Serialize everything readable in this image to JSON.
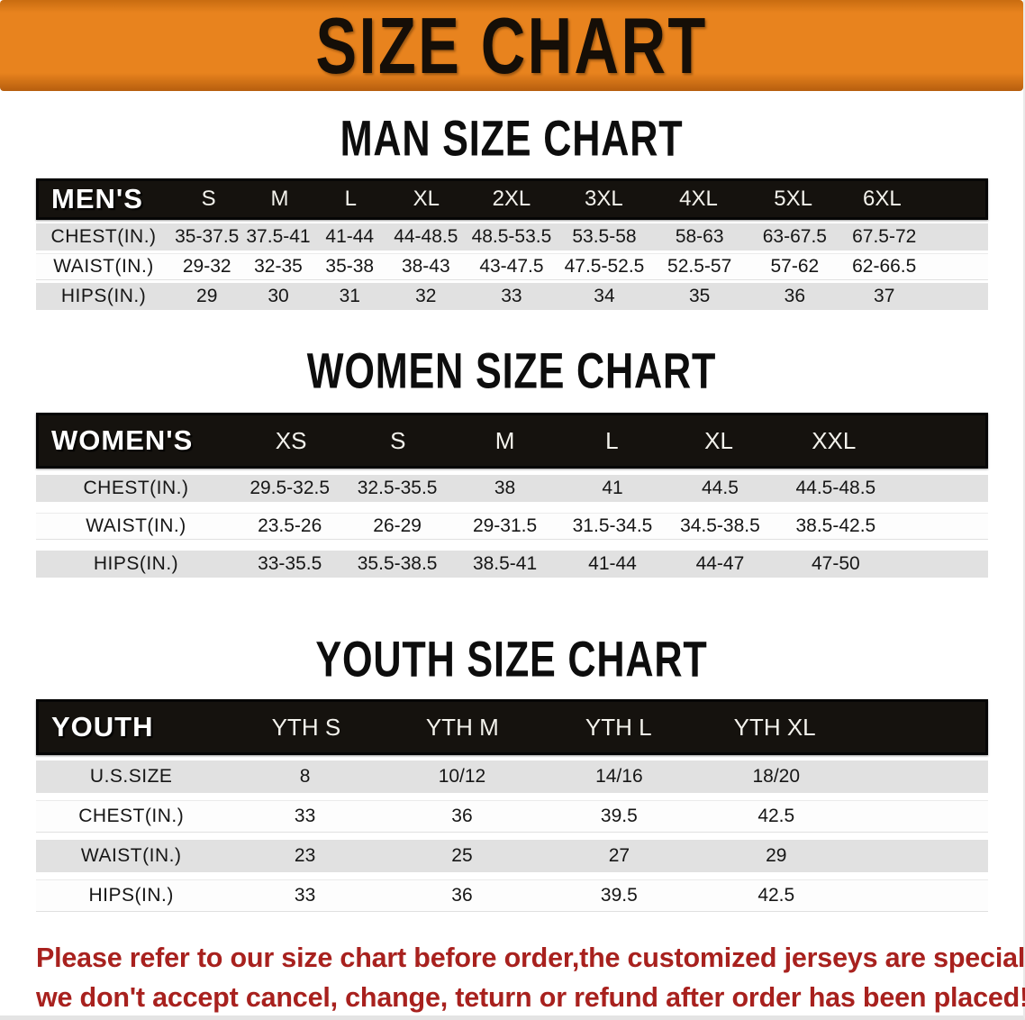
{
  "banner": {
    "title": "SIZE CHART",
    "bg_color": "#E8831E",
    "text_color": "#150E07"
  },
  "sections": [
    {
      "title": "MAN SIZE CHART",
      "group_label": "MEN'S",
      "sizes": [
        "S",
        "M",
        "L",
        "XL",
        "2XL",
        "3XL",
        "4XL",
        "5XL",
        "6XL"
      ],
      "rows": [
        {
          "label": "CHEST(IN.)",
          "values": [
            "35-37.5",
            "37.5-41",
            "41-44",
            "44-48.5",
            "48.5-53.5",
            "53.5-58",
            "58-63",
            "63-67.5",
            "67.5-72"
          ]
        },
        {
          "label": "WAIST(IN.)",
          "values": [
            "29-32",
            "32-35",
            "35-38",
            "38-43",
            "43-47.5",
            "47.5-52.5",
            "52.5-57",
            "57-62",
            "62-66.5"
          ]
        },
        {
          "label": "HIPS(IN.)",
          "values": [
            "29",
            "30",
            "31",
            "32",
            "33",
            "34",
            "35",
            "36",
            "37"
          ]
        }
      ]
    },
    {
      "title": "WOMEN SIZE CHART",
      "group_label": "WOMEN'S",
      "sizes": [
        "XS",
        "S",
        "M",
        "L",
        "XL",
        "XXL"
      ],
      "rows": [
        {
          "label": "CHEST(IN.)",
          "values": [
            "29.5-32.5",
            "32.5-35.5",
            "38",
            "41",
            "44.5",
            "44.5-48.5"
          ]
        },
        {
          "label": "WAIST(IN.)",
          "values": [
            "23.5-26",
            "26-29",
            "29-31.5",
            "31.5-34.5",
            "34.5-38.5",
            "38.5-42.5"
          ]
        },
        {
          "label": "HIPS(IN.)",
          "values": [
            "33-35.5",
            "35.5-38.5",
            "38.5-41",
            "41-44",
            "44-47",
            "47-50"
          ]
        }
      ]
    },
    {
      "title": "YOUTH SIZE CHART",
      "group_label": "YOUTH",
      "sizes": [
        "YTH S",
        "YTH M",
        "YTH L",
        "YTH XL"
      ],
      "rows": [
        {
          "label": "U.S.SIZE",
          "values": [
            "8",
            "10/12",
            "14/16",
            "18/20"
          ]
        },
        {
          "label": "CHEST(IN.)",
          "values": [
            "33",
            "36",
            "39.5",
            "42.5"
          ]
        },
        {
          "label": "WAIST(IN.)",
          "values": [
            "23",
            "25",
            "27",
            "29"
          ]
        },
        {
          "label": "HIPS(IN.)",
          "values": [
            "33",
            "36",
            "39.5",
            "42.5"
          ]
        }
      ]
    }
  ],
  "footer": {
    "line1": "Please refer to our size chart before order,the customized jerseys are special products,",
    "line2": "we don't accept cancel, change, teturn or refund after order has been placed!",
    "color": "#A8211E"
  },
  "colors": {
    "header_row_bg": "#15120E",
    "gray_row_bg": "#E1E1E1",
    "title_text": "#0D0D0D"
  }
}
